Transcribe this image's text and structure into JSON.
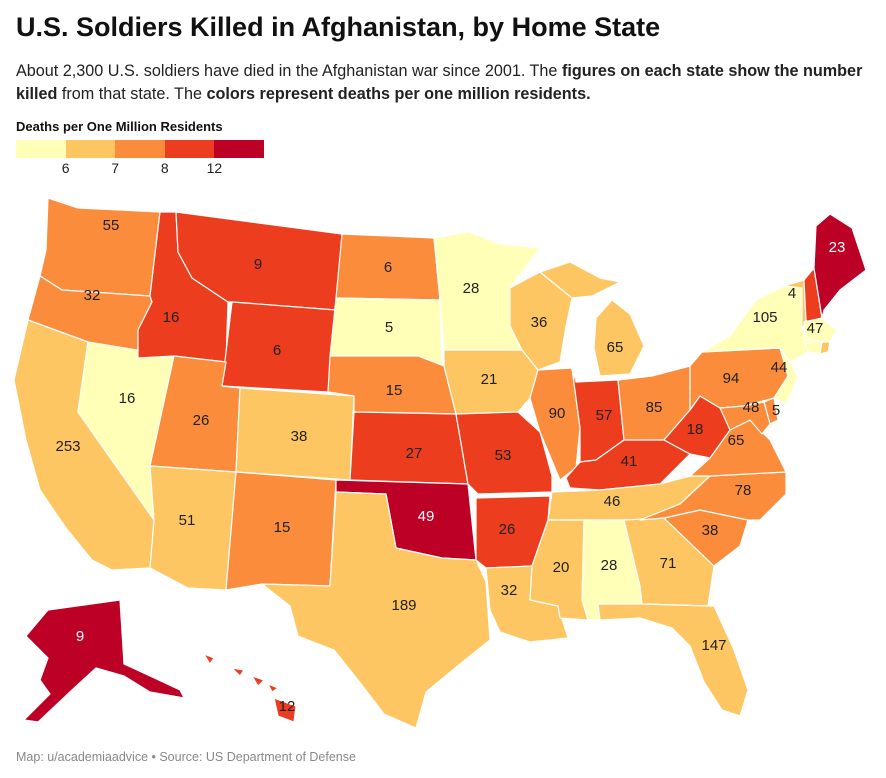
{
  "title": "U.S. Soldiers Killed in Afghanistan, by Home State",
  "subtitle": {
    "part1": "About 2,300 U.S. soldiers have died in the Afghanistan war since 2001. The ",
    "bold1": "figures on each state show the number killed",
    "part2": " from that state. The ",
    "bold2": "colors represent deaths per one million residents."
  },
  "legend": {
    "title": "Deaths per One Million Residents",
    "ticks": [
      "6",
      "7",
      "8",
      "12"
    ],
    "colors": [
      "#ffffb8",
      "#fdc662",
      "#fb8c3c",
      "#ec3d1f",
      "#bd0026"
    ]
  },
  "colors": {
    "c1": "#ffffb8",
    "c2": "#fdc662",
    "c3": "#fb8c3c",
    "c4": "#ec3d1f",
    "c5": "#bd0026"
  },
  "states": [
    {
      "name": "WA",
      "value": "55",
      "bin": "c3"
    },
    {
      "name": "OR",
      "value": "32",
      "bin": "c3"
    },
    {
      "name": "CA",
      "value": "253",
      "bin": "c2"
    },
    {
      "name": "NV",
      "value": "16",
      "bin": "c1"
    },
    {
      "name": "ID",
      "value": "16",
      "bin": "c4"
    },
    {
      "name": "MT",
      "value": "9",
      "bin": "c4"
    },
    {
      "name": "WY",
      "value": "6",
      "bin": "c4"
    },
    {
      "name": "UT",
      "value": "26",
      "bin": "c3"
    },
    {
      "name": "AZ",
      "value": "51",
      "bin": "c2"
    },
    {
      "name": "CO",
      "value": "38",
      "bin": "c2"
    },
    {
      "name": "NM",
      "value": "15",
      "bin": "c3"
    },
    {
      "name": "ND",
      "value": "6",
      "bin": "c3"
    },
    {
      "name": "SD",
      "value": "5",
      "bin": "c1"
    },
    {
      "name": "NE",
      "value": "15",
      "bin": "c3"
    },
    {
      "name": "KS",
      "value": "27",
      "bin": "c4"
    },
    {
      "name": "OK",
      "value": "49",
      "bin": "c5"
    },
    {
      "name": "TX",
      "value": "189",
      "bin": "c2"
    },
    {
      "name": "MN",
      "value": "28",
      "bin": "c1"
    },
    {
      "name": "IA",
      "value": "21",
      "bin": "c2"
    },
    {
      "name": "MO",
      "value": "53",
      "bin": "c4"
    },
    {
      "name": "AR",
      "value": "26",
      "bin": "c4"
    },
    {
      "name": "LA",
      "value": "32",
      "bin": "c2"
    },
    {
      "name": "WI",
      "value": "36",
      "bin": "c2"
    },
    {
      "name": "IL",
      "value": "90",
      "bin": "c3"
    },
    {
      "name": "MI",
      "value": "65",
      "bin": "c2"
    },
    {
      "name": "IN",
      "value": "57",
      "bin": "c4"
    },
    {
      "name": "OH",
      "value": "85",
      "bin": "c3"
    },
    {
      "name": "KY",
      "value": "41",
      "bin": "c4"
    },
    {
      "name": "TN",
      "value": "46",
      "bin": "c2"
    },
    {
      "name": "MS",
      "value": "20",
      "bin": "c2"
    },
    {
      "name": "AL",
      "value": "28",
      "bin": "c1"
    },
    {
      "name": "GA",
      "value": "71",
      "bin": "c2"
    },
    {
      "name": "FL",
      "value": "147",
      "bin": "c2"
    },
    {
      "name": "SC",
      "value": "38",
      "bin": "c3"
    },
    {
      "name": "NC",
      "value": "78",
      "bin": "c3"
    },
    {
      "name": "VA",
      "value": "65",
      "bin": "c3"
    },
    {
      "name": "WV",
      "value": "18",
      "bin": "c4"
    },
    {
      "name": "PA",
      "value": "94",
      "bin": "c3"
    },
    {
      "name": "NY",
      "value": "105",
      "bin": "c1"
    },
    {
      "name": "NJ",
      "value": "44",
      "bin": "c1"
    },
    {
      "name": "DE",
      "value": "5",
      "bin": "c3"
    },
    {
      "name": "MD",
      "value": "48",
      "bin": "c3"
    },
    {
      "name": "VT",
      "value": "4",
      "bin": "c2"
    },
    {
      "name": "NH",
      "value": "",
      "bin": "c4"
    },
    {
      "name": "MA",
      "value": "47",
      "bin": "c1"
    },
    {
      "name": "CT",
      "value": "",
      "bin": "c1"
    },
    {
      "name": "RI",
      "value": "",
      "bin": "c2"
    },
    {
      "name": "ME",
      "value": "23",
      "bin": "c5"
    },
    {
      "name": "AK",
      "value": "9",
      "bin": "c5"
    },
    {
      "name": "HI",
      "value": "12",
      "bin": "c4"
    }
  ],
  "footer": "Map: u/academiaadvice • Source: US Department of Defense"
}
